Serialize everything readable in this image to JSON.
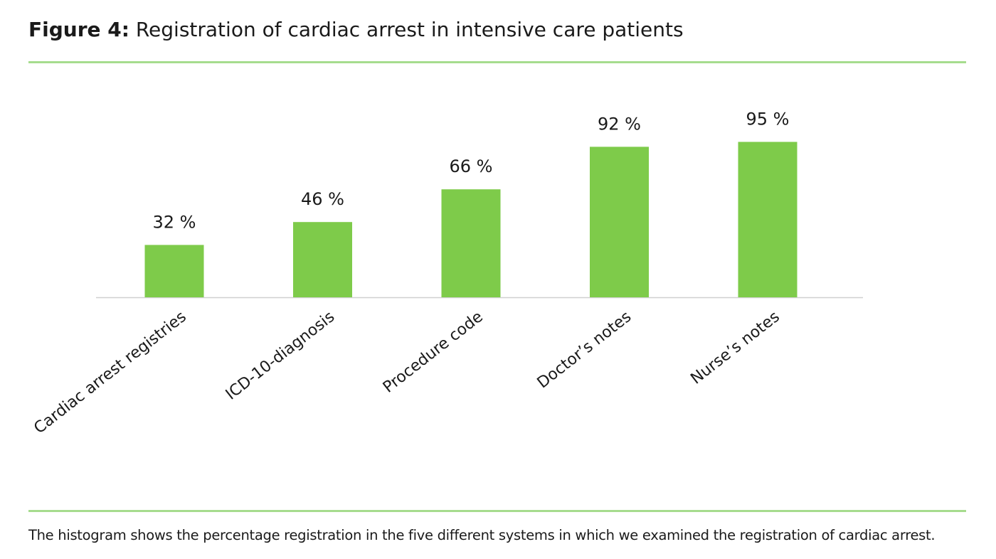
{
  "figure": {
    "label": "Figure 4:",
    "title": "Registration of cardiac arrest in intensive care patients",
    "caption": "The histogram shows the percentage registration in the five different systems in which we examined the registration of cardiac arrest."
  },
  "chart_data": {
    "type": "bar",
    "categories": [
      "Cardiac arrest registries",
      "ICD-10-diagnosis",
      "Procedure code",
      "Doctor’s notes",
      "Nurse’s notes"
    ],
    "values": [
      32,
      46,
      66,
      92,
      95
    ],
    "data_labels": [
      "32 %",
      "46 %",
      "66 %",
      "92 %",
      "95 %"
    ],
    "unit": "%",
    "ylim": [
      0,
      100
    ],
    "grid": false,
    "legend": "none",
    "bar_color": "#7ecb4a",
    "rule_color": "#a6dc8e"
  }
}
